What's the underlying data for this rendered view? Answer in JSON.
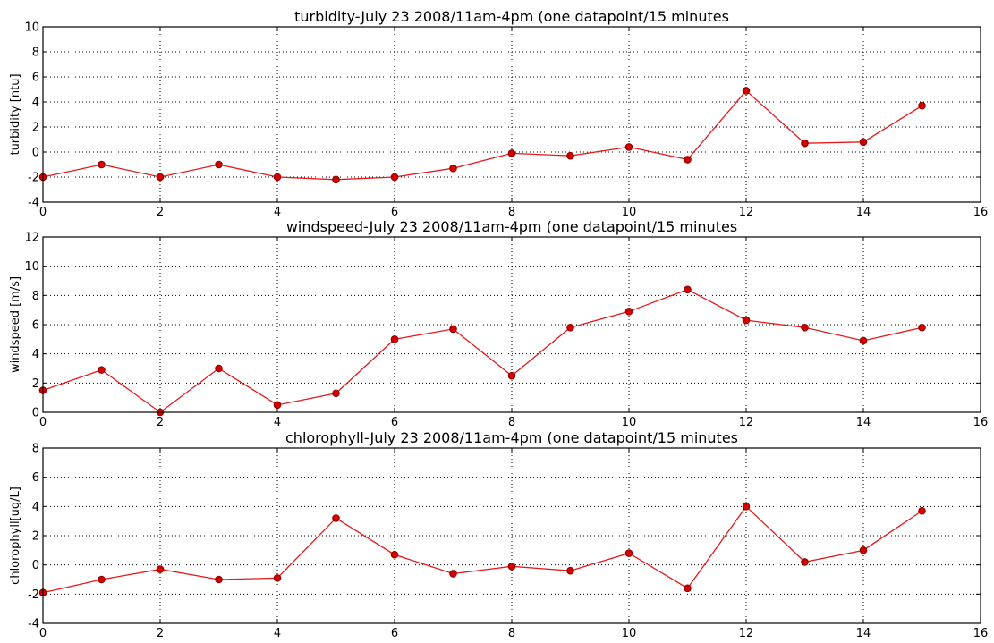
{
  "figure": {
    "colors": {
      "line": "#e41a1c",
      "marker_fill": "#d40000",
      "marker_edge": "#8b0000",
      "grid": "#000000",
      "background": "#ffffff"
    }
  },
  "chart_data": [
    {
      "type": "line",
      "title": "turbidity-July 23 2008/11am-4pm (one datapoint/15 minutes",
      "xlabel": "",
      "ylabel": "turbidity [ntu]",
      "xlim": [
        0,
        16
      ],
      "ylim": [
        -4,
        10
      ],
      "xticks": [
        0,
        2,
        4,
        6,
        8,
        10,
        12,
        14,
        16
      ],
      "yticks": [
        -4,
        -2,
        0,
        2,
        4,
        6,
        8,
        10
      ],
      "grid": true,
      "x": [
        0,
        1,
        2,
        3,
        4,
        5,
        6,
        7,
        8,
        9,
        10,
        11,
        12,
        13,
        14,
        15
      ],
      "series": [
        {
          "values": [
            -2.0,
            -1.0,
            -2.0,
            -1.0,
            -2.0,
            -2.2,
            -2.0,
            -1.3,
            -0.1,
            -0.3,
            0.4,
            -0.6,
            4.9,
            0.7,
            0.8,
            3.7
          ]
        }
      ]
    },
    {
      "type": "line",
      "title": "windspeed-July 23 2008/11am-4pm (one datapoint/15 minutes",
      "xlabel": "",
      "ylabel": "windspeed [m/s]",
      "xlim": [
        0,
        16
      ],
      "ylim": [
        0,
        12
      ],
      "xticks": [
        0,
        2,
        4,
        6,
        8,
        10,
        12,
        14,
        16
      ],
      "yticks": [
        0,
        2,
        4,
        6,
        8,
        10,
        12
      ],
      "grid": true,
      "x": [
        0,
        1,
        2,
        3,
        4,
        5,
        6,
        7,
        8,
        9,
        10,
        11,
        12,
        13,
        14,
        15
      ],
      "series": [
        {
          "values": [
            1.5,
            2.9,
            0.0,
            3.0,
            0.5,
            1.3,
            5.0,
            5.7,
            2.5,
            5.8,
            6.9,
            8.4,
            6.3,
            5.8,
            4.9,
            5.8
          ]
        }
      ]
    },
    {
      "type": "line",
      "title": "chlorophyll-July 23 2008/11am-4pm (one datapoint/15 minutes",
      "xlabel": "",
      "ylabel": "chlorophyll[ug/L]",
      "xlim": [
        0,
        16
      ],
      "ylim": [
        -4,
        8
      ],
      "xticks": [
        0,
        2,
        4,
        6,
        8,
        10,
        12,
        14,
        16
      ],
      "yticks": [
        -4,
        -2,
        0,
        2,
        4,
        6,
        8
      ],
      "grid": true,
      "x": [
        0,
        1,
        2,
        3,
        4,
        5,
        6,
        7,
        8,
        9,
        10,
        11,
        12,
        13,
        14,
        15
      ],
      "series": [
        {
          "values": [
            -1.9,
            -1.0,
            -0.3,
            -1.0,
            -0.9,
            3.2,
            0.7,
            -0.6,
            -0.1,
            -0.4,
            0.8,
            -1.6,
            4.0,
            0.2,
            1.0,
            3.7
          ]
        }
      ]
    }
  ]
}
